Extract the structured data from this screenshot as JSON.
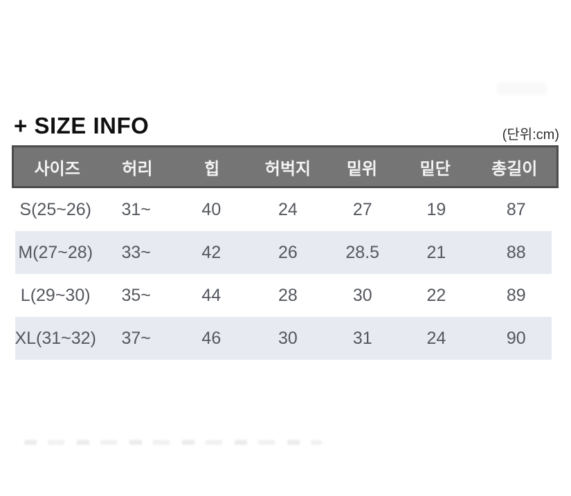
{
  "title": "+ SIZE INFO",
  "unit_label": "(단위:cm)",
  "colors": {
    "header_bg": "#757575",
    "header_border": "#4c4c4c",
    "header_text": "#f4f4f4",
    "stripe_bg": "#e8eaf1",
    "body_text": "#54575d",
    "title_text": "#101010"
  },
  "table": {
    "columns": [
      "사이즈",
      "허리",
      "힙",
      "허벅지",
      "밑위",
      "밑단",
      "총길이"
    ],
    "rows": [
      [
        "S(25~26)",
        "31~",
        "40",
        "24",
        "27",
        "19",
        "87"
      ],
      [
        "M(27~28)",
        "33~",
        "42",
        "26",
        "28.5",
        "21",
        "88"
      ],
      [
        "L(29~30)",
        "35~",
        "44",
        "28",
        "30",
        "22",
        "89"
      ],
      [
        "XL(31~32)",
        "37~",
        "46",
        "30",
        "31",
        "24",
        "90"
      ]
    ]
  },
  "chart_data": {
    "type": "table",
    "title": "+ SIZE INFO",
    "unit": "cm",
    "columns": [
      "사이즈",
      "허리",
      "힙",
      "허벅지",
      "밑위",
      "밑단",
      "총길이"
    ],
    "rows": [
      {
        "사이즈": "S(25~26)",
        "허리": "31~",
        "힙": 40,
        "허벅지": 24,
        "밑위": 27,
        "밑단": 19,
        "총길이": 87
      },
      {
        "사이즈": "M(27~28)",
        "허리": "33~",
        "힙": 42,
        "허벅지": 26,
        "밑위": 28.5,
        "밑단": 21,
        "총길이": 88
      },
      {
        "사이즈": "L(29~30)",
        "허리": "35~",
        "힙": 44,
        "허벅지": 28,
        "밑위": 30,
        "밑단": 22,
        "총길이": 89
      },
      {
        "사이즈": "XL(31~32)",
        "허리": "37~",
        "힙": 46,
        "허벅지": 30,
        "밑위": 31,
        "밑단": 24,
        "총길이": 90
      }
    ]
  }
}
